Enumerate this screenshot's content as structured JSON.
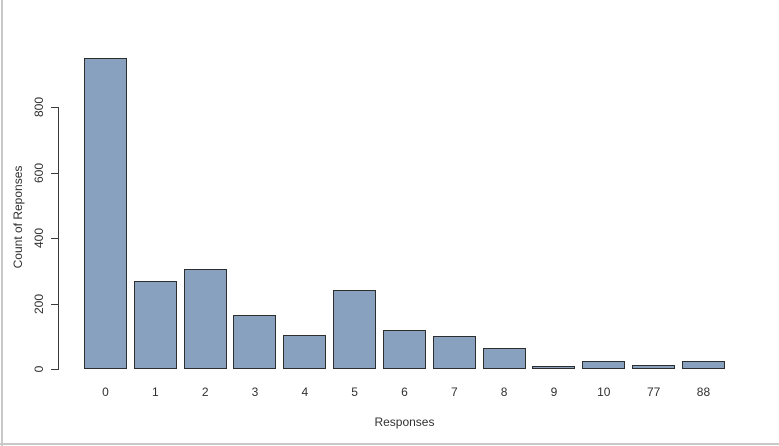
{
  "chart_data": {
    "type": "bar",
    "title": "",
    "xlabel": "Responses",
    "ylabel": "Count of Reponses",
    "categories": [
      "0",
      "1",
      "2",
      "3",
      "4",
      "5",
      "6",
      "7",
      "8",
      "9",
      "10",
      "77",
      "88"
    ],
    "values": [
      950,
      270,
      305,
      165,
      105,
      240,
      120,
      100,
      65,
      10,
      25,
      13,
      23
    ],
    "yticks": [
      0,
      200,
      400,
      600,
      800
    ],
    "ylim": [
      0,
      960
    ],
    "grid": false,
    "legend": false,
    "colors": {
      "bar_fill": "#87A1BF",
      "bar_border": "#2e2e2e",
      "axis": "#3a3a3a",
      "text": "#303030",
      "frame_edge": "#c9c9c9",
      "background": "#ffffff"
    }
  }
}
